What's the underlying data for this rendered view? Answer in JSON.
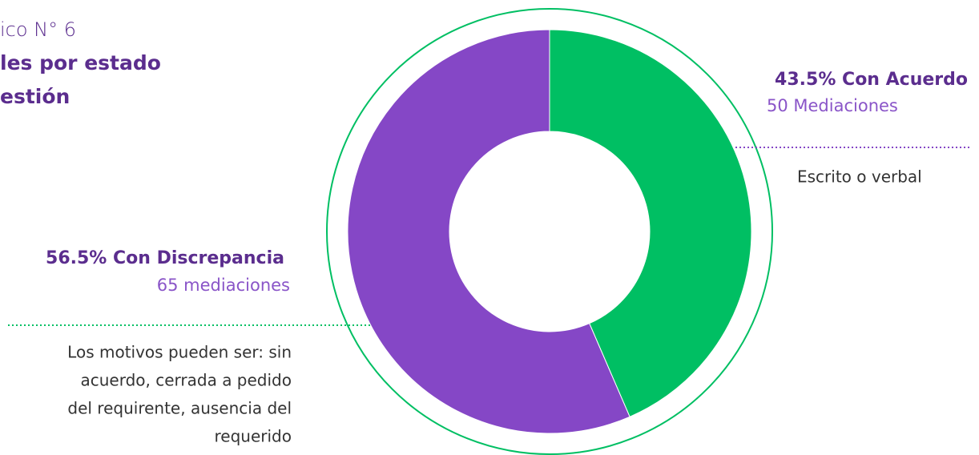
{
  "chart_data": {
    "type": "pie",
    "donut": true,
    "title_lines": [
      "ico N° 6",
      "les por estado",
      "estión"
    ],
    "categories": [
      "Con Acuerdo",
      "Con Discrepancia"
    ],
    "values": [
      43.5,
      56.5
    ],
    "value_labels": [
      "43.5%",
      "56.5%"
    ],
    "colors": [
      "#00bf63",
      "#8547c6"
    ],
    "counts": [
      "50 Mediaciones",
      "65 mediaciones"
    ],
    "descriptions": [
      [
        "Escrito o verbal"
      ],
      [
        "Los motivos pueden ser: sin",
        "acuerdo, cerrada a pedido",
        "del requirente, ausencia del",
        "requerido"
      ]
    ]
  }
}
